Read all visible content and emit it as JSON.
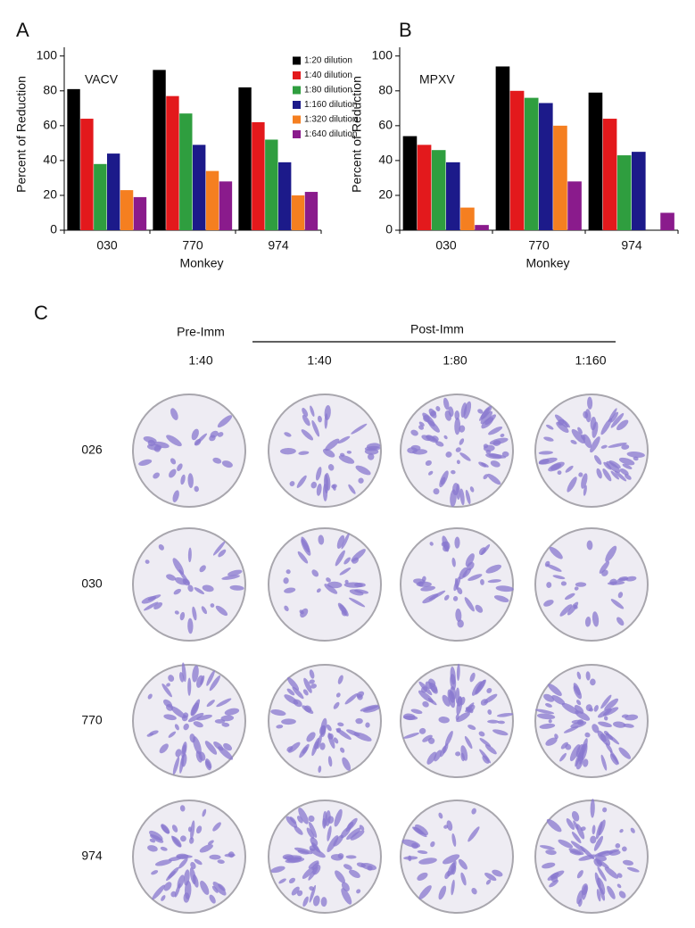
{
  "chart_data": [
    {
      "type": "bar",
      "panel": "A",
      "title": "VACV",
      "x_label": "Monkey",
      "y_label": "Percent of Reduction",
      "categories": [
        "030",
        "770",
        "974"
      ],
      "series": [
        {
          "name": "1:20 dilution",
          "color": "#000000",
          "values": [
            81,
            92,
            82
          ]
        },
        {
          "name": "1:40 dilution",
          "color": "#e3191c",
          "values": [
            64,
            77,
            62
          ]
        },
        {
          "name": "1:80 dilution",
          "color": "#2f9e3f",
          "values": [
            38,
            67,
            52
          ]
        },
        {
          "name": "1:160 dilution",
          "color": "#1c1a8a",
          "values": [
            44,
            49,
            39
          ]
        },
        {
          "name": "1:320 dilution",
          "color": "#f57f20",
          "values": [
            23,
            34,
            20
          ]
        },
        {
          "name": "1:640 dilution",
          "color": "#8a1b8c",
          "values": [
            19,
            28,
            22
          ]
        }
      ],
      "ylim": [
        0,
        105
      ],
      "yticks": [
        0,
        20,
        40,
        60,
        80,
        100
      ],
      "legend": "top-right"
    },
    {
      "type": "bar",
      "panel": "B",
      "title": "MPXV",
      "x_label": "Monkey",
      "y_label": "Percent of Reduction",
      "categories": [
        "030",
        "770",
        "974"
      ],
      "series": [
        {
          "color": "#000000",
          "values": [
            54,
            94,
            79
          ]
        },
        {
          "color": "#e3191c",
          "values": [
            49,
            80,
            64
          ]
        },
        {
          "color": "#2f9e3f",
          "values": [
            46,
            76,
            43
          ]
        },
        {
          "color": "#1c1a8a",
          "values": [
            39,
            73,
            45
          ]
        },
        {
          "color": "#f57f20",
          "values": [
            13,
            60,
            0
          ]
        },
        {
          "color": "#8a1b8c",
          "values": [
            3,
            28,
            10
          ]
        }
      ],
      "ylim": [
        0,
        105
      ],
      "yticks": [
        0,
        20,
        40,
        60,
        80,
        100
      ]
    }
  ],
  "panel_c": {
    "panel": "C",
    "pre_label": "Pre-Imm",
    "post_label": "Post-Imm",
    "columns": [
      "1:40",
      "1:40",
      "1:80",
      "1:160"
    ],
    "rows": [
      "026",
      "030",
      "770",
      "974"
    ]
  }
}
